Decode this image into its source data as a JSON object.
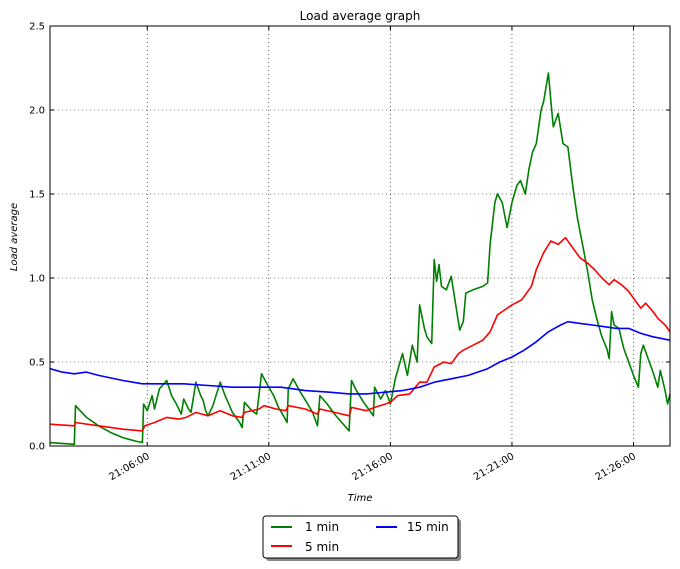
{
  "chart_data": {
    "type": "line",
    "title": "Load average graph",
    "xlabel": "Time",
    "ylabel": "Load average",
    "ylim": [
      0,
      2.5
    ],
    "xlim_minutes": [
      0,
      25.5
    ],
    "yticks": [
      "0.0",
      "0.5",
      "1.0",
      "1.5",
      "2.0",
      "2.5"
    ],
    "xticks": [
      {
        "label": "21:06:00",
        "minute": 4
      },
      {
        "label": "21:11:00",
        "minute": 9
      },
      {
        "label": "21:16:00",
        "minute": 14
      },
      {
        "label": "21:21:00",
        "minute": 19
      },
      {
        "label": "21:26:00",
        "minute": 24
      }
    ],
    "grid": true,
    "legend_position": "bottom-center",
    "series": [
      {
        "name": "1 min",
        "color": "#008000",
        "points": [
          [
            0,
            0.02
          ],
          [
            1.0,
            0.01
          ],
          [
            1.05,
            0.24
          ],
          [
            1.5,
            0.17
          ],
          [
            2.0,
            0.12
          ],
          [
            2.5,
            0.08
          ],
          [
            3.0,
            0.05
          ],
          [
            3.5,
            0.03
          ],
          [
            3.8,
            0.02
          ],
          [
            3.85,
            0.25
          ],
          [
            4.0,
            0.21
          ],
          [
            4.2,
            0.3
          ],
          [
            4.3,
            0.22
          ],
          [
            4.5,
            0.34
          ],
          [
            4.8,
            0.39
          ],
          [
            5.0,
            0.3
          ],
          [
            5.2,
            0.25
          ],
          [
            5.4,
            0.19
          ],
          [
            5.5,
            0.28
          ],
          [
            5.7,
            0.22
          ],
          [
            5.8,
            0.2
          ],
          [
            6.0,
            0.38
          ],
          [
            6.2,
            0.3
          ],
          [
            6.3,
            0.27
          ],
          [
            6.4,
            0.21
          ],
          [
            6.5,
            0.18
          ],
          [
            6.7,
            0.24
          ],
          [
            7.0,
            0.38
          ],
          [
            7.2,
            0.3
          ],
          [
            7.5,
            0.2
          ],
          [
            7.8,
            0.14
          ],
          [
            7.9,
            0.11
          ],
          [
            8.0,
            0.26
          ],
          [
            8.3,
            0.21
          ],
          [
            8.5,
            0.19
          ],
          [
            8.7,
            0.43
          ],
          [
            9.0,
            0.35
          ],
          [
            9.2,
            0.3
          ],
          [
            9.4,
            0.23
          ],
          [
            9.6,
            0.18
          ],
          [
            9.75,
            0.14
          ],
          [
            9.8,
            0.34
          ],
          [
            10.0,
            0.4
          ],
          [
            10.3,
            0.32
          ],
          [
            10.6,
            0.25
          ],
          [
            10.8,
            0.2
          ],
          [
            11.0,
            0.12
          ],
          [
            11.1,
            0.3
          ],
          [
            11.4,
            0.25
          ],
          [
            11.7,
            0.19
          ],
          [
            12.0,
            0.14
          ],
          [
            12.3,
            0.09
          ],
          [
            12.4,
            0.39
          ],
          [
            12.6,
            0.33
          ],
          [
            12.9,
            0.26
          ],
          [
            13.1,
            0.22
          ],
          [
            13.3,
            0.18
          ],
          [
            13.35,
            0.35
          ],
          [
            13.6,
            0.28
          ],
          [
            13.8,
            0.33
          ],
          [
            14.0,
            0.25
          ],
          [
            14.2,
            0.4
          ],
          [
            14.3,
            0.45
          ],
          [
            14.5,
            0.55
          ],
          [
            14.7,
            0.42
          ],
          [
            14.9,
            0.6
          ],
          [
            15.1,
            0.5
          ],
          [
            15.2,
            0.84
          ],
          [
            15.4,
            0.7
          ],
          [
            15.5,
            0.65
          ],
          [
            15.7,
            0.61
          ],
          [
            15.8,
            1.11
          ],
          [
            15.9,
            0.98
          ],
          [
            16.0,
            1.08
          ],
          [
            16.1,
            0.95
          ],
          [
            16.3,
            0.93
          ],
          [
            16.5,
            1.01
          ],
          [
            16.7,
            0.83
          ],
          [
            16.85,
            0.69
          ],
          [
            17.0,
            0.74
          ],
          [
            17.1,
            0.91
          ],
          [
            17.4,
            0.93
          ],
          [
            17.8,
            0.95
          ],
          [
            18.0,
            0.97
          ],
          [
            18.1,
            1.2
          ],
          [
            18.3,
            1.45
          ],
          [
            18.4,
            1.5
          ],
          [
            18.6,
            1.45
          ],
          [
            18.8,
            1.3
          ],
          [
            19.0,
            1.45
          ],
          [
            19.2,
            1.55
          ],
          [
            19.35,
            1.58
          ],
          [
            19.55,
            1.5
          ],
          [
            19.7,
            1.65
          ],
          [
            19.85,
            1.75
          ],
          [
            20.0,
            1.8
          ],
          [
            20.2,
            2.0
          ],
          [
            20.3,
            2.05
          ],
          [
            20.5,
            2.22
          ],
          [
            20.6,
            2.05
          ],
          [
            20.7,
            1.9
          ],
          [
            20.9,
            1.98
          ],
          [
            21.1,
            1.8
          ],
          [
            21.3,
            1.78
          ],
          [
            21.5,
            1.55
          ],
          [
            21.7,
            1.35
          ],
          [
            21.9,
            1.2
          ],
          [
            22.1,
            1.05
          ],
          [
            22.3,
            0.87
          ],
          [
            22.5,
            0.75
          ],
          [
            22.7,
            0.65
          ],
          [
            22.9,
            0.58
          ],
          [
            23.0,
            0.52
          ],
          [
            23.1,
            0.8
          ],
          [
            23.2,
            0.72
          ],
          [
            23.4,
            0.7
          ],
          [
            23.6,
            0.58
          ],
          [
            23.8,
            0.5
          ],
          [
            24.0,
            0.42
          ],
          [
            24.2,
            0.35
          ],
          [
            24.3,
            0.55
          ],
          [
            24.4,
            0.6
          ],
          [
            24.6,
            0.52
          ],
          [
            24.8,
            0.44
          ],
          [
            25.0,
            0.35
          ],
          [
            25.1,
            0.45
          ],
          [
            25.3,
            0.33
          ],
          [
            25.4,
            0.25
          ],
          [
            25.5,
            0.31
          ]
        ]
      },
      {
        "name": "5 min",
        "color": "#ff0000",
        "points": [
          [
            0,
            0.13
          ],
          [
            1.0,
            0.12
          ],
          [
            1.05,
            0.14
          ],
          [
            2.0,
            0.12
          ],
          [
            3.0,
            0.1
          ],
          [
            3.8,
            0.09
          ],
          [
            3.9,
            0.12
          ],
          [
            4.3,
            0.14
          ],
          [
            4.8,
            0.17
          ],
          [
            5.3,
            0.16
          ],
          [
            5.6,
            0.17
          ],
          [
            6.0,
            0.2
          ],
          [
            6.5,
            0.18
          ],
          [
            7.0,
            0.21
          ],
          [
            7.5,
            0.18
          ],
          [
            7.9,
            0.17
          ],
          [
            8.0,
            0.2
          ],
          [
            8.6,
            0.22
          ],
          [
            8.8,
            0.24
          ],
          [
            9.3,
            0.22
          ],
          [
            9.7,
            0.21
          ],
          [
            9.8,
            0.24
          ],
          [
            10.5,
            0.22
          ],
          [
            11.0,
            0.19
          ],
          [
            11.1,
            0.22
          ],
          [
            11.7,
            0.2
          ],
          [
            12.3,
            0.18
          ],
          [
            12.4,
            0.23
          ],
          [
            13.0,
            0.21
          ],
          [
            13.35,
            0.23
          ],
          [
            13.8,
            0.25
          ],
          [
            14.0,
            0.26
          ],
          [
            14.3,
            0.3
          ],
          [
            14.8,
            0.31
          ],
          [
            15.2,
            0.38
          ],
          [
            15.5,
            0.38
          ],
          [
            15.8,
            0.47
          ],
          [
            16.2,
            0.5
          ],
          [
            16.5,
            0.49
          ],
          [
            16.8,
            0.55
          ],
          [
            17.0,
            0.57
          ],
          [
            17.4,
            0.6
          ],
          [
            17.8,
            0.63
          ],
          [
            18.1,
            0.68
          ],
          [
            18.4,
            0.78
          ],
          [
            18.7,
            0.81
          ],
          [
            19.0,
            0.84
          ],
          [
            19.4,
            0.87
          ],
          [
            19.8,
            0.95
          ],
          [
            20.0,
            1.05
          ],
          [
            20.3,
            1.15
          ],
          [
            20.6,
            1.22
          ],
          [
            20.9,
            1.2
          ],
          [
            21.2,
            1.24
          ],
          [
            21.5,
            1.18
          ],
          [
            21.8,
            1.12
          ],
          [
            22.1,
            1.09
          ],
          [
            22.4,
            1.05
          ],
          [
            22.7,
            1.0
          ],
          [
            23.0,
            0.96
          ],
          [
            23.2,
            0.99
          ],
          [
            23.5,
            0.96
          ],
          [
            23.8,
            0.92
          ],
          [
            24.0,
            0.88
          ],
          [
            24.3,
            0.82
          ],
          [
            24.5,
            0.85
          ],
          [
            24.8,
            0.8
          ],
          [
            25.0,
            0.76
          ],
          [
            25.3,
            0.72
          ],
          [
            25.5,
            0.68
          ]
        ]
      },
      {
        "name": "15 min",
        "color": "#0000ff",
        "points": [
          [
            0,
            0.46
          ],
          [
            0.5,
            0.44
          ],
          [
            1.0,
            0.43
          ],
          [
            1.5,
            0.44
          ],
          [
            2.0,
            0.42
          ],
          [
            3.0,
            0.39
          ],
          [
            3.8,
            0.37
          ],
          [
            4.5,
            0.37
          ],
          [
            5.5,
            0.37
          ],
          [
            6.5,
            0.36
          ],
          [
            7.5,
            0.35
          ],
          [
            8.5,
            0.35
          ],
          [
            9.5,
            0.35
          ],
          [
            10.5,
            0.33
          ],
          [
            11.5,
            0.32
          ],
          [
            12.3,
            0.31
          ],
          [
            13.0,
            0.31
          ],
          [
            13.8,
            0.32
          ],
          [
            14.5,
            0.33
          ],
          [
            15.2,
            0.35
          ],
          [
            15.8,
            0.38
          ],
          [
            16.5,
            0.4
          ],
          [
            17.2,
            0.42
          ],
          [
            18.0,
            0.46
          ],
          [
            18.5,
            0.5
          ],
          [
            19.0,
            0.53
          ],
          [
            19.5,
            0.57
          ],
          [
            20.0,
            0.62
          ],
          [
            20.5,
            0.68
          ],
          [
            21.0,
            0.72
          ],
          [
            21.3,
            0.74
          ],
          [
            21.8,
            0.73
          ],
          [
            22.3,
            0.72
          ],
          [
            22.8,
            0.71
          ],
          [
            23.3,
            0.7
          ],
          [
            23.8,
            0.7
          ],
          [
            24.3,
            0.67
          ],
          [
            24.8,
            0.65
          ],
          [
            25.5,
            0.63
          ]
        ]
      }
    ]
  }
}
